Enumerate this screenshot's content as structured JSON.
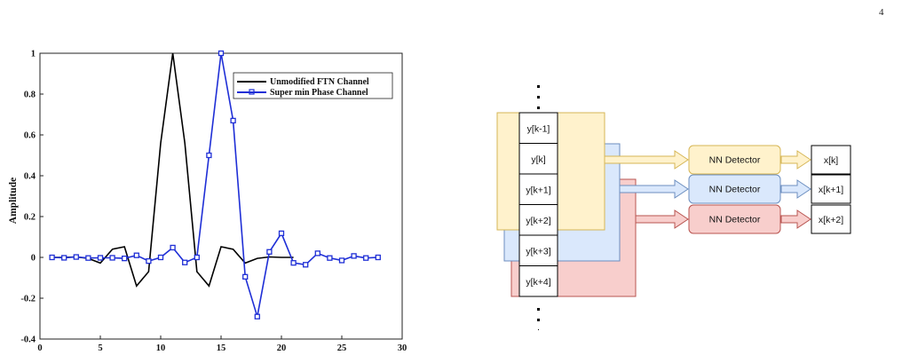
{
  "page_number": "4",
  "chart_data": {
    "type": "line",
    "xlabel": "",
    "ylabel": "Amplitude",
    "xlim": [
      0,
      30
    ],
    "ylim": [
      -0.4,
      1
    ],
    "xticks": [
      0,
      5,
      10,
      15,
      20,
      25,
      30
    ],
    "yticks": [
      -0.4,
      -0.2,
      0,
      0.2,
      0.4,
      0.6,
      0.8,
      1
    ],
    "legend_position": "top-right",
    "series": [
      {
        "name": "Unmodified FTN Channel",
        "color": "#000000",
        "marker": "none",
        "x": [
          1,
          2,
          3,
          4,
          5,
          6,
          7,
          8,
          9,
          10,
          11,
          12,
          13,
          14,
          15,
          16,
          17,
          18,
          19,
          20,
          21
        ],
        "y": [
          0,
          0,
          0.002,
          -0.005,
          -0.028,
          0.04,
          0.052,
          -0.14,
          -0.07,
          0.56,
          1.0,
          0.56,
          -0.07,
          -0.14,
          0.052,
          0.04,
          -0.028,
          -0.005,
          0.002,
          0,
          0
        ]
      },
      {
        "name": "Super min Phase Channel",
        "color": "#1f2fd6",
        "marker": "square",
        "x": [
          1,
          2,
          3,
          4,
          5,
          6,
          7,
          8,
          9,
          10,
          11,
          12,
          13,
          14,
          15,
          16,
          17,
          18,
          19,
          20,
          21,
          22,
          23,
          24,
          25,
          26,
          27,
          28
        ],
        "y": [
          0,
          -0.002,
          0.002,
          -0.003,
          -0.002,
          -0.002,
          -0.005,
          0.01,
          -0.018,
          0,
          0.048,
          -0.025,
          0,
          0.5,
          1.0,
          0.67,
          -0.095,
          -0.29,
          0.027,
          0.118,
          -0.027,
          -0.036,
          0.02,
          -0.003,
          -0.015,
          0.007,
          -0.003,
          0
        ]
      }
    ]
  },
  "diagram": {
    "inputs": [
      "y[k-1]",
      "y[k]",
      "y[k+1]",
      "y[k+2]",
      "y[k+3]",
      "y[k+4]"
    ],
    "detectors": [
      {
        "label": "NN Detector",
        "output": "x[k]",
        "fill": "#fff2cc",
        "stroke": "#d6b656"
      },
      {
        "label": "NN Detector",
        "output": "x[k+1]",
        "fill": "#dae8fc",
        "stroke": "#6c8ebf"
      },
      {
        "label": "NN Detector",
        "output": "x[k+2]",
        "fill": "#f8cecc",
        "stroke": "#b85450"
      }
    ]
  }
}
